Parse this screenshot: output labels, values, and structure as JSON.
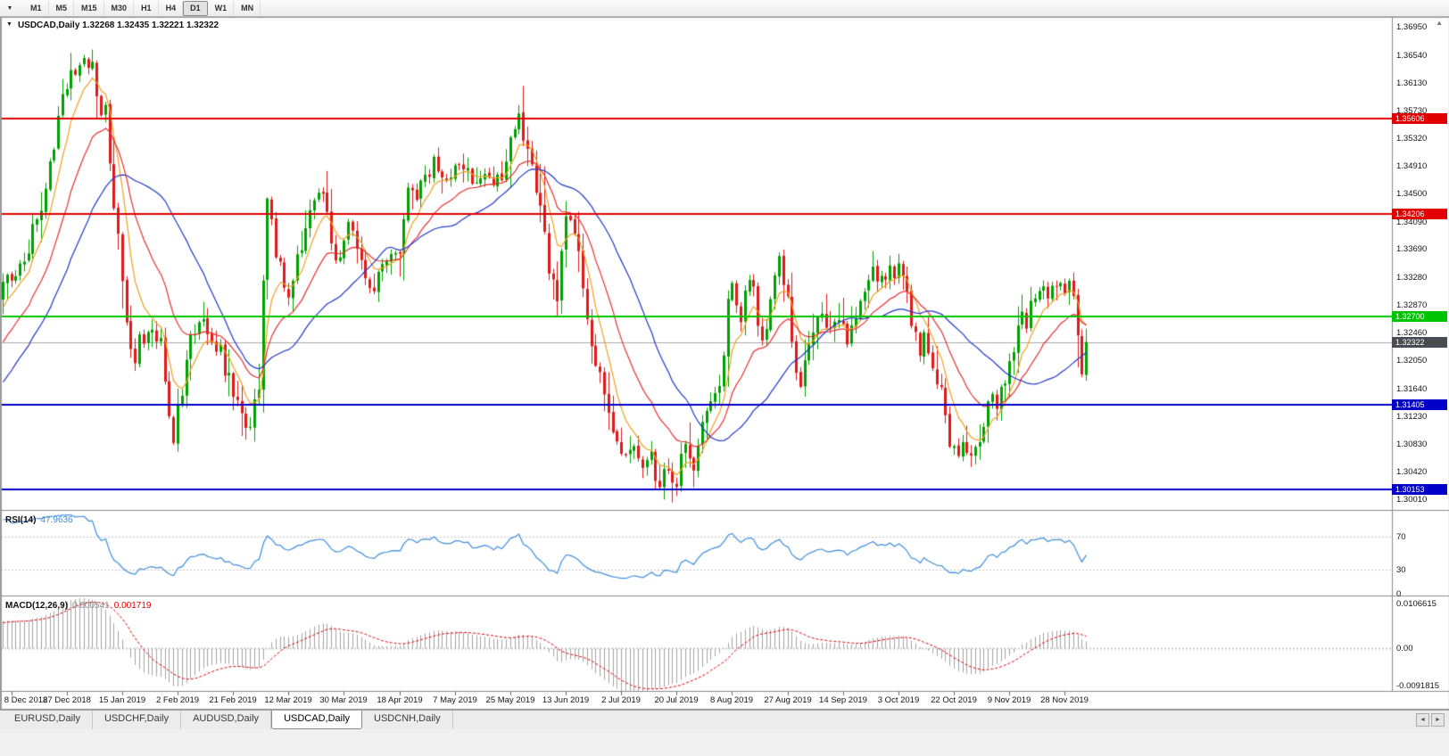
{
  "icons": {
    "toolbar_dropdown": "▼",
    "chart_collapse": "▼",
    "scroll_up": "▲",
    "tab_scroll_left": "◄",
    "tab_scroll_right": "►"
  },
  "toolbar": {
    "timeframes": [
      {
        "label": "M1",
        "active": false
      },
      {
        "label": "M5",
        "active": false
      },
      {
        "label": "M15",
        "active": false
      },
      {
        "label": "M30",
        "active": false
      },
      {
        "label": "H1",
        "active": false
      },
      {
        "label": "H4",
        "active": false
      },
      {
        "label": "D1",
        "active": true
      },
      {
        "label": "W1",
        "active": false
      },
      {
        "label": "MN",
        "active": false
      }
    ]
  },
  "chart": {
    "title_text": "USDCAD,Daily 1.32268 1.32435 1.32221 1.32322",
    "symbol": "USDCAD",
    "period": "Daily"
  },
  "indicators": {
    "rsi": {
      "name": "RSI(14)",
      "value": "47.9636"
    },
    "macd": {
      "name": "MACD(12,26,9)",
      "value_main": "0.000541",
      "value_signal": "0.001719"
    }
  },
  "tabs": {
    "items": [
      {
        "label": "EURUSD,Daily",
        "active": false
      },
      {
        "label": "USDCHF,Daily",
        "active": false
      },
      {
        "label": "AUDUSD,Daily",
        "active": false
      },
      {
        "label": "USDCAD,Daily",
        "active": true
      },
      {
        "label": "USDCNH,Daily",
        "active": false
      }
    ]
  },
  "chart_data": {
    "type": "candlestick",
    "symbol": "USDCAD",
    "timeframe": "Daily",
    "ohlc": {
      "open": 1.32268,
      "high": 1.32435,
      "low": 1.32221,
      "close": 1.32322
    },
    "price_axis": {
      "range": [
        1.2988,
        1.371
      ],
      "ticks": [
        "1.36950",
        "1.36540",
        "1.36130",
        "1.35730",
        "1.35320",
        "1.34910",
        "1.34500",
        "1.34090",
        "1.33690",
        "1.33280",
        "1.32870",
        "1.32460",
        "1.32050",
        "1.31640",
        "1.31230",
        "1.30830",
        "1.30420",
        "1.30010"
      ]
    },
    "date_axis": {
      "labels": [
        "8 Dec 2018",
        "27 Dec 2018",
        "15 Jan 2019",
        "2 Feb 2019",
        "21 Feb 2019",
        "12 Mar 2019",
        "30 Mar 2019",
        "18 Apr 2019",
        "7 May 2019",
        "25 May 2019",
        "13 Jun 2019",
        "2 Jul 2019",
        "20 Jul 2019",
        "8 Aug 2019",
        "27 Aug 2019",
        "14 Sep 2019",
        "3 Oct 2019",
        "22 Oct 2019",
        "9 Nov 2019",
        "28 Nov 2019"
      ]
    },
    "hlines": [
      {
        "value": 1.35606,
        "label": "1.35606",
        "color": "#E00000"
      },
      {
        "value": 1.34206,
        "label": "1.34206",
        "color": "#E00000"
      },
      {
        "value": 1.327,
        "label": "1.32700",
        "color": "#00C400"
      },
      {
        "value": 1.31405,
        "label": "1.31405",
        "color": "#0000C8"
      },
      {
        "value": 1.30153,
        "label": "1.30153",
        "color": "#0000C8"
      }
    ],
    "current_price": {
      "value": 1.32322,
      "label": "1.32322",
      "badge_color": "#474C52",
      "line_color": "#A8A8A8"
    },
    "moving_averages": [
      {
        "type": "ema",
        "period": 7,
        "color": "#F0A020"
      },
      {
        "type": "ema",
        "period": 18,
        "color": "#E83030"
      },
      {
        "type": "sma",
        "period": 30,
        "color": "#2238C8"
      }
    ],
    "rsi": {
      "period": 14,
      "value": 47.9636,
      "color": "#3E8EDE",
      "levels": [
        70,
        30
      ],
      "axis_labels": [
        "70",
        "30",
        "0"
      ],
      "range": [
        0,
        100
      ]
    },
    "macd": {
      "fast": 12,
      "slow": 26,
      "signal": 9,
      "hist_color": "#A4A4A4",
      "signal_color": "#E00000",
      "range": [
        -0.0091815,
        0.0106615
      ],
      "axis_labels": [
        "0.0106615",
        "0.00",
        "-0.0091815"
      ]
    },
    "candles": {
      "bars": 255,
      "up_color": "#00A000",
      "down_color": "#DE1A1A",
      "pre_anchors": [
        [
          -50,
          1.2945
        ],
        [
          -38,
          1.3005
        ],
        [
          -27,
          1.3065
        ],
        [
          -17,
          1.314
        ],
        [
          -9,
          1.3225
        ],
        [
          -4,
          1.3275
        ],
        [
          -1,
          1.33
        ]
      ],
      "anchors": [
        [
          0,
          1.331
        ],
        [
          2,
          1.3328
        ],
        [
          4,
          1.3342
        ],
        [
          6,
          1.3368
        ],
        [
          8,
          1.3415
        ],
        [
          10,
          1.3465
        ],
        [
          12,
          1.353
        ],
        [
          14,
          1.359
        ],
        [
          16,
          1.3625
        ],
        [
          18,
          1.3642
        ],
        [
          19,
          1.3658
        ],
        [
          20,
          1.3628
        ],
        [
          21,
          1.3648
        ],
        [
          22,
          1.3592
        ],
        [
          23,
          1.3555
        ],
        [
          24,
          1.3565
        ],
        [
          25,
          1.3485
        ],
        [
          26,
          1.3445
        ],
        [
          27,
          1.3385
        ],
        [
          28,
          1.333
        ],
        [
          29,
          1.3272
        ],
        [
          30,
          1.3222
        ],
        [
          31,
          1.3208
        ],
        [
          32,
          1.3242
        ],
        [
          33,
          1.3228
        ],
        [
          34,
          1.3256
        ],
        [
          35,
          1.3262
        ],
        [
          36,
          1.3232
        ],
        [
          37,
          1.3238
        ],
        [
          38,
          1.3182
        ],
        [
          39,
          1.3112
        ],
        [
          40,
          1.3085
        ],
        [
          41,
          1.3128
        ],
        [
          42,
          1.3168
        ],
        [
          43,
          1.3198
        ],
        [
          44,
          1.3228
        ],
        [
          45,
          1.3248
        ],
        [
          46,
          1.3258
        ],
        [
          47,
          1.3272
        ],
        [
          48,
          1.3256
        ],
        [
          49,
          1.3236
        ],
        [
          50,
          1.3216
        ],
        [
          51,
          1.3226
        ],
        [
          52,
          1.3196
        ],
        [
          53,
          1.3186
        ],
        [
          54,
          1.3162
        ],
        [
          55,
          1.3152
        ],
        [
          56,
          1.3132
        ],
        [
          57,
          1.3116
        ],
        [
          58,
          1.3106
        ],
        [
          59,
          1.3142
        ],
        [
          60,
          1.3182
        ],
        [
          61,
          1.3302
        ],
        [
          62,
          1.3422
        ],
        [
          63,
          1.3396
        ],
        [
          64,
          1.3362
        ],
        [
          65,
          1.3342
        ],
        [
          66,
          1.3312
        ],
        [
          67,
          1.3296
        ],
        [
          68,
          1.3322
        ],
        [
          69,
          1.3346
        ],
        [
          70,
          1.3372
        ],
        [
          71,
          1.3402
        ],
        [
          72,
          1.3422
        ],
        [
          74,
          1.344
        ],
        [
          75,
          1.3446
        ],
        [
          76,
          1.3412
        ],
        [
          77,
          1.3386
        ],
        [
          78,
          1.3362
        ],
        [
          79,
          1.3366
        ],
        [
          80,
          1.3392
        ],
        [
          81,
          1.3402
        ],
        [
          82,
          1.3382
        ],
        [
          83,
          1.3362
        ],
        [
          84,
          1.3346
        ],
        [
          85,
          1.3332
        ],
        [
          86,
          1.3322
        ],
        [
          87,
          1.3316
        ],
        [
          88,
          1.3326
        ],
        [
          90,
          1.3346
        ],
        [
          92,
          1.3362
        ],
        [
          93,
          1.3372
        ],
        [
          94,
          1.3422
        ],
        [
          95,
          1.3462
        ],
        [
          96,
          1.3452
        ],
        [
          97,
          1.3442
        ],
        [
          98,
          1.3456
        ],
        [
          99,
          1.3472
        ],
        [
          100,
          1.3486
        ],
        [
          101,
          1.3496
        ],
        [
          102,
          1.349
        ],
        [
          104,
          1.3476
        ],
        [
          105,
          1.347
        ],
        [
          106,
          1.3486
        ],
        [
          107,
          1.3496
        ],
        [
          108,
          1.349
        ],
        [
          109,
          1.3486
        ],
        [
          110,
          1.3472
        ],
        [
          111,
          1.3456
        ],
        [
          112,
          1.3466
        ],
        [
          113,
          1.3476
        ],
        [
          114,
          1.3466
        ],
        [
          115,
          1.3456
        ],
        [
          116,
          1.3466
        ],
        [
          117,
          1.3476
        ],
        [
          118,
          1.3502
        ],
        [
          119,
          1.3532
        ],
        [
          120,
          1.3546
        ],
        [
          121,
          1.3556
        ],
        [
          122,
          1.3522
        ],
        [
          123,
          1.3502
        ],
        [
          124,
          1.3482
        ],
        [
          125,
          1.3462
        ],
        [
          126,
          1.3442
        ],
        [
          127,
          1.3392
        ],
        [
          128,
          1.3342
        ],
        [
          129,
          1.3312
        ],
        [
          130,
          1.3292
        ],
        [
          131,
          1.3362
        ],
        [
          132,
          1.3422
        ],
        [
          133,
          1.3412
        ],
        [
          134,
          1.3402
        ],
        [
          135,
          1.3352
        ],
        [
          136,
          1.3302
        ],
        [
          137,
          1.3272
        ],
        [
          138,
          1.3242
        ],
        [
          139,
          1.3212
        ],
        [
          140,
          1.3182
        ],
        [
          141,
          1.3152
        ],
        [
          142,
          1.3122
        ],
        [
          143,
          1.3106
        ],
        [
          144,
          1.3092
        ],
        [
          145,
          1.3076
        ],
        [
          146,
          1.3066
        ],
        [
          147,
          1.3076
        ],
        [
          148,
          1.3086
        ],
        [
          149,
          1.3066
        ],
        [
          150,
          1.3046
        ],
        [
          151,
          1.3056
        ],
        [
          152,
          1.3066
        ],
        [
          153,
          1.3036
        ],
        [
          154,
          1.303
        ],
        [
          155,
          1.3046
        ],
        [
          156,
          1.3052
        ],
        [
          157,
          1.3036
        ],
        [
          158,
          1.3026
        ],
        [
          159,
          1.3052
        ],
        [
          160,
          1.3082
        ],
        [
          161,
          1.3062
        ],
        [
          162,
          1.3046
        ],
        [
          163,
          1.3076
        ],
        [
          164,
          1.3106
        ],
        [
          165,
          1.3126
        ],
        [
          166,
          1.3146
        ],
        [
          167,
          1.3166
        ],
        [
          168,
          1.3152
        ],
        [
          169,
          1.3226
        ],
        [
          170,
          1.3276
        ],
        [
          171,
          1.3318
        ],
        [
          172,
          1.3298
        ],
        [
          173,
          1.3268
        ],
        [
          174,
          1.3308
        ],
        [
          175,
          1.3328
        ],
        [
          176,
          1.3298
        ],
        [
          177,
          1.3268
        ],
        [
          178,
          1.3242
        ],
        [
          179,
          1.3268
        ],
        [
          180,
          1.3298
        ],
        [
          181,
          1.3328
        ],
        [
          182,
          1.3368
        ],
        [
          183,
          1.3328
        ],
        [
          184,
          1.3278
        ],
        [
          185,
          1.3228
        ],
        [
          186,
          1.3192
        ],
        [
          187,
          1.3172
        ],
        [
          188,
          1.3198
        ],
        [
          189,
          1.3228
        ],
        [
          190,
          1.3252
        ],
        [
          191,
          1.3272
        ],
        [
          192,
          1.3282
        ],
        [
          193,
          1.3262
        ],
        [
          194,
          1.3242
        ],
        [
          195,
          1.3256
        ],
        [
          196,
          1.3272
        ],
        [
          197,
          1.3252
        ],
        [
          198,
          1.3232
        ],
        [
          199,
          1.3252
        ],
        [
          200,
          1.3272
        ],
        [
          201,
          1.3292
        ],
        [
          202,
          1.3302
        ],
        [
          203,
          1.3312
        ],
        [
          204,
          1.3332
        ],
        [
          205,
          1.3322
        ],
        [
          206,
          1.3332
        ],
        [
          207,
          1.3332
        ],
        [
          208,
          1.3342
        ],
        [
          209,
          1.3332
        ],
        [
          210,
          1.3342
        ],
        [
          211,
          1.3322
        ],
        [
          212,
          1.3292
        ],
        [
          213,
          1.3262
        ],
        [
          214,
          1.3242
        ],
        [
          215,
          1.3222
        ],
        [
          216,
          1.3242
        ],
        [
          217,
          1.3222
        ],
        [
          218,
          1.3202
        ],
        [
          219,
          1.3182
        ],
        [
          220,
          1.3152
        ],
        [
          221,
          1.3122
        ],
        [
          222,
          1.3092
        ],
        [
          223,
          1.3072
        ],
        [
          224,
          1.3062
        ],
        [
          225,
          1.3082
        ],
        [
          226,
          1.3066
        ],
        [
          227,
          1.3056
        ],
        [
          228,
          1.3076
        ],
        [
          229,
          1.3092
        ],
        [
          230,
          1.3112
        ],
        [
          231,
          1.3132
        ],
        [
          232,
          1.3152
        ],
        [
          233,
          1.3142
        ],
        [
          234,
          1.3162
        ],
        [
          235,
          1.3182
        ],
        [
          236,
          1.3202
        ],
        [
          237,
          1.3232
        ],
        [
          238,
          1.3252
        ],
        [
          239,
          1.3272
        ],
        [
          240,
          1.3262
        ],
        [
          241,
          1.3282
        ],
        [
          242,
          1.3292
        ],
        [
          243,
          1.3302
        ],
        [
          244,
          1.3312
        ],
        [
          245,
          1.3302
        ],
        [
          246,
          1.3322
        ],
        [
          247,
          1.3312
        ],
        [
          248,
          1.3326
        ],
        [
          249,
          1.3312
        ],
        [
          250,
          1.3326
        ],
        [
          251,
          1.3302
        ],
        [
          252,
          1.3242
        ],
        [
          253,
          1.3186
        ],
        [
          254,
          1.32322
        ]
      ]
    }
  }
}
